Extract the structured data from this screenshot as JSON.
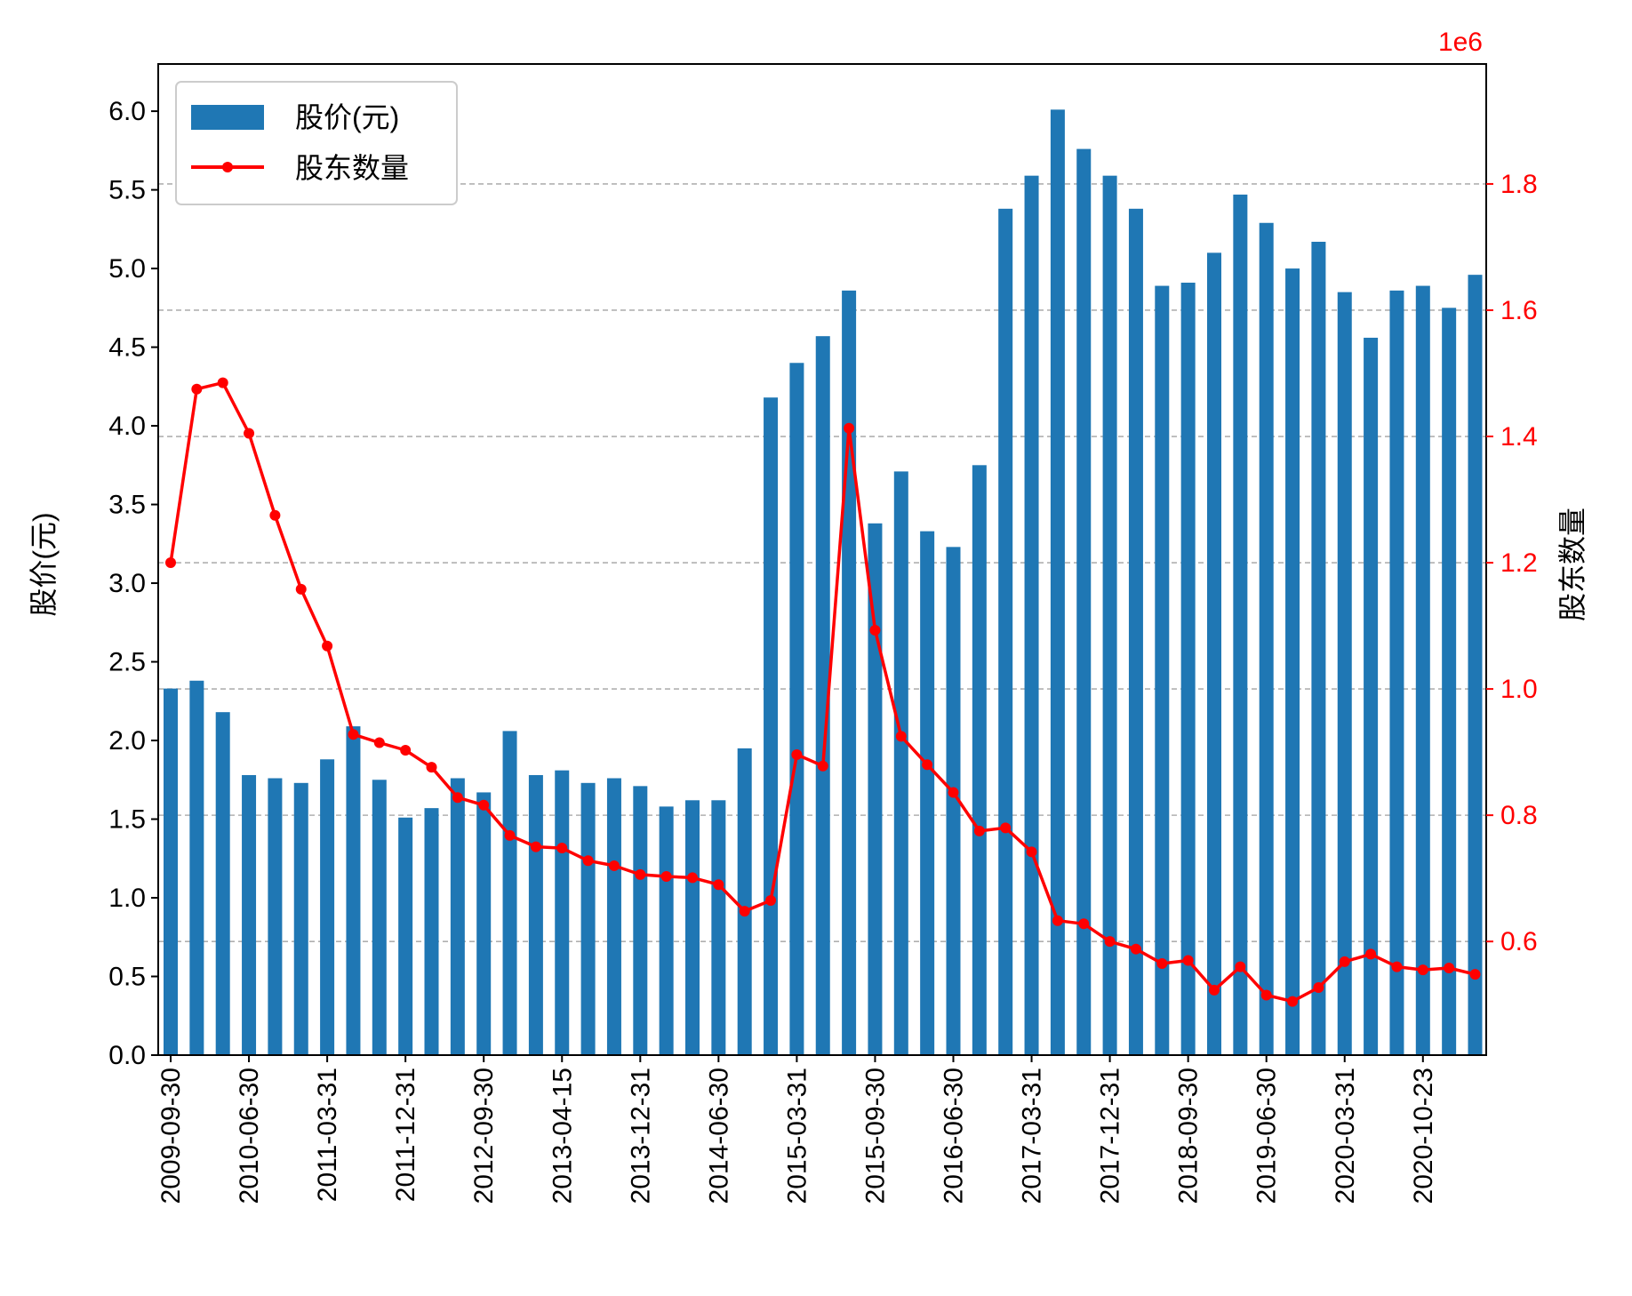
{
  "chart_data": {
    "type": "bar",
    "xlabel": "",
    "ylabel": "股价(元)",
    "ylabel_right": "股东数量",
    "ylim": [
      0,
      6.3
    ],
    "ylim_right": [
      420000,
      1990000
    ],
    "right_scale_label": "1e6",
    "grid": "horizontal dashed (right axis)",
    "legend_position": "upper-left",
    "colors": {
      "bar": "#1f77b4",
      "line": "#ff0000",
      "grid": "#b0b0b0"
    },
    "y_ticks": [
      "0.0",
      "0.5",
      "1.0",
      "1.5",
      "2.0",
      "2.5",
      "3.0",
      "3.5",
      "4.0",
      "4.5",
      "5.0",
      "5.5",
      "6.0"
    ],
    "y_right_ticks": [
      "0.6",
      "0.8",
      "1.0",
      "1.2",
      "1.4",
      "1.6",
      "1.8"
    ],
    "x_tick_labels": [
      {
        "index": 0,
        "label": "2009-09-30"
      },
      {
        "index": 3,
        "label": "2010-06-30"
      },
      {
        "index": 6,
        "label": "2011-03-31"
      },
      {
        "index": 9,
        "label": "2011-12-31"
      },
      {
        "index": 12,
        "label": "2012-09-30"
      },
      {
        "index": 15,
        "label": "2013-04-15"
      },
      {
        "index": 18,
        "label": "2013-12-31"
      },
      {
        "index": 21,
        "label": "2014-06-30"
      },
      {
        "index": 24,
        "label": "2015-03-31"
      },
      {
        "index": 27,
        "label": "2015-09-30"
      },
      {
        "index": 30,
        "label": "2016-06-30"
      },
      {
        "index": 33,
        "label": "2017-03-31"
      },
      {
        "index": 36,
        "label": "2017-12-31"
      },
      {
        "index": 39,
        "label": "2018-09-30"
      },
      {
        "index": 42,
        "label": "2019-06-30"
      },
      {
        "index": 45,
        "label": "2020-03-31"
      },
      {
        "index": 48,
        "label": "2020-10-23"
      }
    ],
    "series": [
      {
        "name": "股价(元)",
        "type": "bar",
        "axis": "left",
        "values": [
          2.33,
          2.38,
          2.18,
          1.78,
          1.76,
          1.73,
          1.88,
          2.09,
          1.75,
          1.51,
          1.57,
          1.76,
          1.67,
          2.06,
          1.78,
          1.81,
          1.73,
          1.76,
          1.71,
          1.58,
          1.62,
          1.62,
          1.95,
          4.18,
          4.4,
          4.57,
          4.86,
          3.38,
          3.71,
          3.33,
          3.23,
          3.75,
          5.38,
          5.59,
          6.01,
          5.76,
          5.59,
          5.38,
          4.89,
          4.91,
          5.1,
          5.47,
          5.29,
          5.0,
          5.17,
          4.85,
          4.56,
          4.86,
          4.89,
          4.75,
          4.96
        ]
      },
      {
        "name": "股东数量",
        "type": "line",
        "axis": "right",
        "values": [
          1200000,
          1475000,
          1485000,
          1405000,
          1275000,
          1158000,
          1068000,
          928000,
          915000,
          903000,
          876000,
          828000,
          816000,
          768000,
          750000,
          748000,
          728000,
          720000,
          706000,
          703000,
          701000,
          690000,
          648000,
          665000,
          896000,
          878000,
          1413000,
          1093000,
          925000,
          880000,
          836000,
          775000,
          780000,
          742000,
          633000,
          628000,
          600000,
          588000,
          565000,
          570000,
          523000,
          560000,
          515000,
          505000,
          527000,
          568000,
          580000,
          560000,
          555000,
          558000,
          548000
        ]
      }
    ]
  }
}
